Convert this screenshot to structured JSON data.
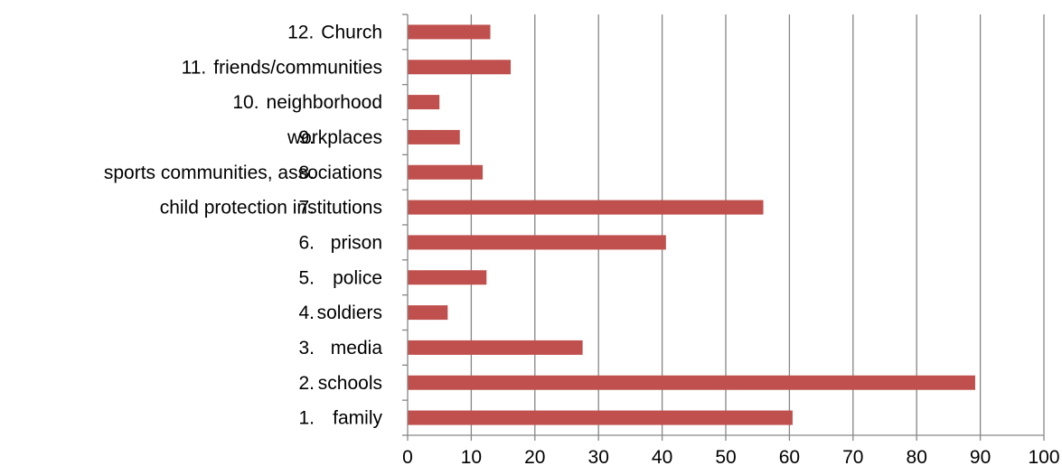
{
  "chart_data": {
    "type": "bar",
    "orientation": "horizontal",
    "categories": [
      {
        "num": "1.",
        "text": "family"
      },
      {
        "num": "2.",
        "text": "schools"
      },
      {
        "num": "3.",
        "text": "media"
      },
      {
        "num": "4.",
        "text": "soldiers"
      },
      {
        "num": "5.",
        "text": "police"
      },
      {
        "num": "6.",
        "text": "prison"
      },
      {
        "num": "7.",
        "text": "child protection institutions"
      },
      {
        "num": "8.",
        "text": "sports communities, associations"
      },
      {
        "num": "9.",
        "text": "workplaces"
      },
      {
        "num": "10.",
        "text": "neighborhood"
      },
      {
        "num": "11.",
        "text": "friends/communities"
      },
      {
        "num": "12.",
        "text": "Church"
      }
    ],
    "values": [
      60.5,
      89.2,
      27.5,
      6.3,
      12.4,
      40.6,
      55.9,
      11.8,
      8.2,
      5.0,
      16.2,
      13.0
    ],
    "xlim": [
      0,
      100
    ],
    "xticks": [
      0,
      10,
      20,
      30,
      40,
      50,
      60,
      70,
      80,
      90,
      100
    ],
    "title": "",
    "xlabel": "",
    "ylabel": "",
    "grid": "vertical",
    "legend": "none",
    "colors": {
      "bar": "#C0504D",
      "grid": "#868686",
      "axis": "#868686",
      "text": "#000000"
    }
  }
}
